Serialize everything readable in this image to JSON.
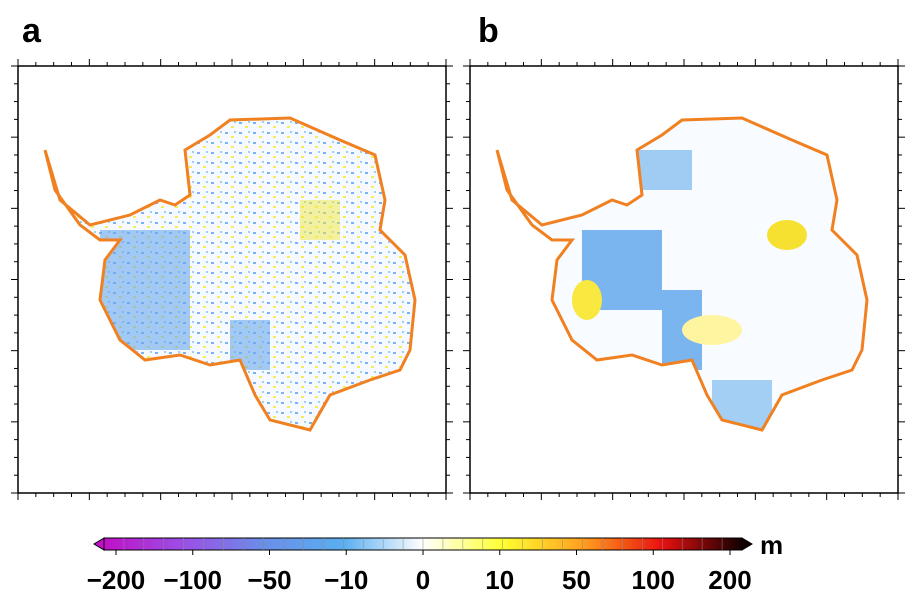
{
  "panels": [
    {
      "label": "a"
    },
    {
      "label": "b"
    }
  ],
  "colorbar": {
    "unit": "m",
    "ticks": [
      {
        "value": -200,
        "label": "−200"
      },
      {
        "value": -100,
        "label": "−100"
      },
      {
        "value": -50,
        "label": "−50"
      },
      {
        "value": -10,
        "label": "−10"
      },
      0,
      10,
      50,
      100,
      200
    ],
    "colors": [
      "#c010c8",
      "#9a50e6",
      "#6a8ee8",
      "#5aaef0",
      "#ffffff",
      "#ffff30",
      "#ffa020",
      "#e81010",
      "#100000"
    ]
  }
}
